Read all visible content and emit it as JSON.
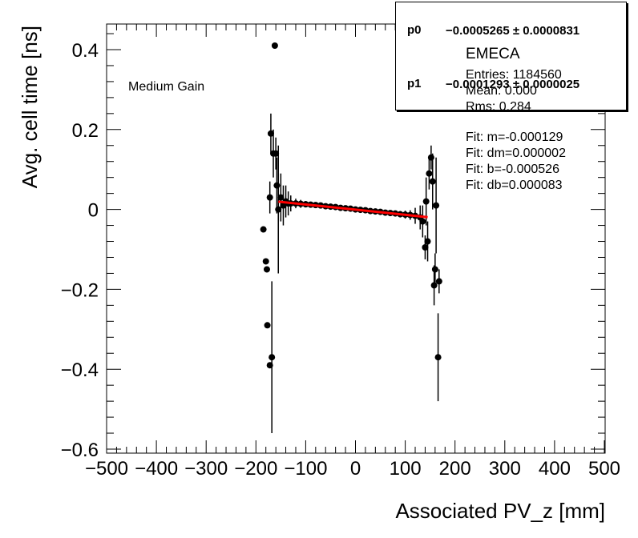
{
  "chart_data": {
    "type": "scatter",
    "title": "EMECA",
    "xlabel": "Associated PV_z [mm]",
    "ylabel": "Avg. cell time [ns]",
    "annotation": "Medium Gain",
    "xlim": [
      -500,
      500
    ],
    "ylim": [
      -0.6,
      0.45
    ],
    "x_ticks": [
      "−500",
      "−400",
      "−300",
      "−200",
      "−100",
      "0",
      "100",
      "200",
      "300",
      "400",
      "500"
    ],
    "y_ticks": [
      "0.4",
      "0.2",
      "0",
      "−0.2",
      "−0.4",
      "−0.6"
    ],
    "x_tick_values": [
      -500,
      -400,
      -300,
      -200,
      -100,
      0,
      100,
      200,
      300,
      400,
      500
    ],
    "y_tick_values": [
      0.4,
      0.2,
      0,
      -0.2,
      -0.4,
      -0.6
    ],
    "points": [
      {
        "x": -162,
        "y": 0.41,
        "err": 0.0
      },
      {
        "x": -185,
        "y": -0.05,
        "err": 0.0
      },
      {
        "x": -180,
        "y": -0.13,
        "err": 0.0
      },
      {
        "x": -178,
        "y": -0.15,
        "err": 0.0
      },
      {
        "x": -177,
        "y": -0.29,
        "err": 0.0
      },
      {
        "x": -172,
        "y": -0.39,
        "err": 0.0
      },
      {
        "x": -168,
        "y": -0.37,
        "err": 0.19
      },
      {
        "x": -170,
        "y": 0.19,
        "err": 0.05
      },
      {
        "x": -165,
        "y": 0.14,
        "err": 0.06
      },
      {
        "x": -172,
        "y": 0.03,
        "err": 0.04
      },
      {
        "x": -160,
        "y": 0.14,
        "err": 0.04
      },
      {
        "x": -158,
        "y": 0.06,
        "err": 0.07
      },
      {
        "x": -155,
        "y": 0.0,
        "err": 0.16
      },
      {
        "x": -150,
        "y": 0.03,
        "err": 0.06
      },
      {
        "x": -145,
        "y": 0.01,
        "err": 0.05
      },
      {
        "x": -140,
        "y": 0.02,
        "err": 0.04
      },
      {
        "x": -135,
        "y": 0.015,
        "err": 0.03
      },
      {
        "x": -130,
        "y": 0.015,
        "err": 0.02
      },
      {
        "x": -120,
        "y": 0.015,
        "err": 0.012
      },
      {
        "x": -110,
        "y": 0.014,
        "err": 0.01
      },
      {
        "x": -100,
        "y": 0.013,
        "err": 0.008
      },
      {
        "x": -90,
        "y": 0.012,
        "err": 0.007
      },
      {
        "x": -80,
        "y": 0.011,
        "err": 0.006
      },
      {
        "x": -70,
        "y": 0.01,
        "err": 0.005
      },
      {
        "x": -60,
        "y": 0.008,
        "err": 0.005
      },
      {
        "x": -50,
        "y": 0.007,
        "err": 0.004
      },
      {
        "x": -40,
        "y": 0.006,
        "err": 0.004
      },
      {
        "x": -30,
        "y": 0.004,
        "err": 0.004
      },
      {
        "x": -20,
        "y": 0.003,
        "err": 0.004
      },
      {
        "x": -10,
        "y": 0.002,
        "err": 0.004
      },
      {
        "x": 0,
        "y": 0.0,
        "err": 0.004
      },
      {
        "x": 10,
        "y": -0.001,
        "err": 0.004
      },
      {
        "x": 20,
        "y": -0.002,
        "err": 0.004
      },
      {
        "x": 30,
        "y": -0.004,
        "err": 0.004
      },
      {
        "x": 40,
        "y": -0.005,
        "err": 0.005
      },
      {
        "x": 50,
        "y": -0.006,
        "err": 0.005
      },
      {
        "x": 60,
        "y": -0.008,
        "err": 0.005
      },
      {
        "x": 70,
        "y": -0.009,
        "err": 0.006
      },
      {
        "x": 80,
        "y": -0.01,
        "err": 0.007
      },
      {
        "x": 90,
        "y": -0.012,
        "err": 0.008
      },
      {
        "x": 100,
        "y": -0.013,
        "err": 0.01
      },
      {
        "x": 110,
        "y": -0.014,
        "err": 0.012
      },
      {
        "x": 120,
        "y": -0.016,
        "err": 0.02
      },
      {
        "x": 130,
        "y": -0.02,
        "err": 0.03
      },
      {
        "x": 135,
        "y": -0.03,
        "err": 0.04
      },
      {
        "x": 140,
        "y": -0.095,
        "err": 0.03
      },
      {
        "x": 142,
        "y": 0.02,
        "err": 0.06
      },
      {
        "x": 145,
        "y": -0.08,
        "err": 0.05
      },
      {
        "x": 148,
        "y": 0.09,
        "err": 0.04
      },
      {
        "x": 152,
        "y": 0.13,
        "err": 0.03
      },
      {
        "x": 155,
        "y": 0.07,
        "err": 0.07
      },
      {
        "x": 158,
        "y": -0.19,
        "err": 0.05
      },
      {
        "x": 160,
        "y": -0.15,
        "err": 0.04
      },
      {
        "x": 162,
        "y": 0.01,
        "err": 0.12
      },
      {
        "x": 168,
        "y": -0.18,
        "err": 0.03
      },
      {
        "x": 166,
        "y": -0.37,
        "err": 0.11
      }
    ],
    "fit_line": {
      "color": "#ff0000",
      "x_range": [
        -155,
        145
      ],
      "slope": -0.0001293,
      "intercept": -0.0005265
    },
    "marker_color": "#000000"
  },
  "fit_box": {
    "p0_name": "p0",
    "p0_value": "−0.0005265 ± 0.0000831",
    "p1_name": "p1",
    "p1_value": "−0.0001293 ± 0.0000025"
  },
  "stats_box": {
    "title": "EMECA",
    "entries": "Entries: 1184560",
    "mean": "Mean: 0.000",
    "rms": "Rms: 0.284",
    "fit_m": "Fit: m=-0.000129",
    "fit_dm": "Fit: dm=0.000002",
    "fit_b": "Fit: b=-0.000526",
    "fit_db": "Fit: db=0.000083"
  }
}
